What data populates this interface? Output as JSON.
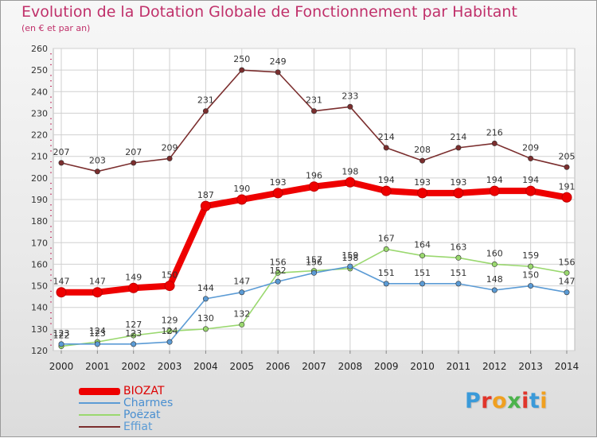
{
  "header": {
    "title": "Evolution de la Dotation Globale de Fonctionnement par Habitant",
    "subtitle": "(en € et par an)"
  },
  "logo": {
    "text": "Proxiti",
    "colors": [
      "#3a9ad9",
      "#e0352b",
      "#f0a020",
      "#4bb34b",
      "#e0352b",
      "#3a9ad9",
      "#f0a020"
    ]
  },
  "chart_data": {
    "type": "line",
    "x": [
      2000,
      2001,
      2002,
      2003,
      2004,
      2005,
      2006,
      2007,
      2008,
      2009,
      2010,
      2011,
      2012,
      2013,
      2014
    ],
    "ylim": [
      120,
      260
    ],
    "yticks": [
      120,
      130,
      140,
      150,
      160,
      170,
      180,
      190,
      200,
      210,
      220,
      230,
      240,
      250,
      260
    ],
    "grid": true,
    "legend_position": "bottom-left",
    "series": [
      {
        "name": "BIOZAT",
        "color": "#ee0000",
        "values": [
          147,
          147,
          149,
          150,
          187,
          190,
          193,
          196,
          198,
          194,
          193,
          193,
          194,
          194,
          191
        ]
      },
      {
        "name": "Charmes",
        "color": "#5b9bd5",
        "values": [
          123,
          123,
          123,
          124,
          144,
          147,
          152,
          156,
          159,
          151,
          151,
          151,
          148,
          150,
          147
        ]
      },
      {
        "name": "Poëzat",
        "color": "#9ad86f",
        "values": [
          122,
          124,
          127,
          129,
          130,
          132,
          156,
          157,
          158,
          167,
          164,
          163,
          160,
          159,
          156
        ]
      },
      {
        "name": "Effiat",
        "color": "#7b2e2e",
        "values": [
          207,
          203,
          207,
          209,
          231,
          250,
          249,
          231,
          233,
          214,
          208,
          214,
          216,
          209,
          205
        ]
      }
    ]
  }
}
